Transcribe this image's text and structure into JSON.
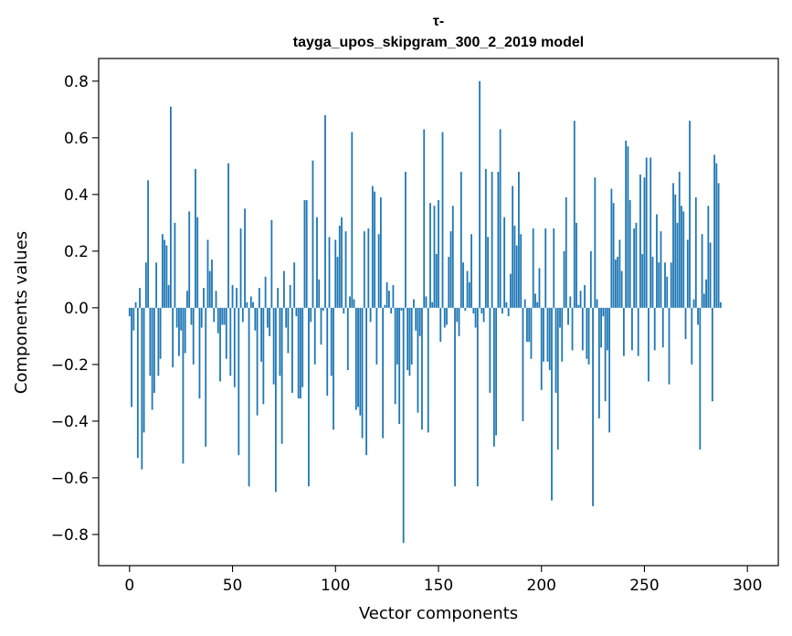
{
  "chart_data": {
    "type": "bar",
    "title_line1": "τ-",
    "title_line2": "tayga_upos_skipgram_300_2_2019 model",
    "xlabel": "Vector components",
    "ylabel": "Components values",
    "xlim": [
      -15,
      315
    ],
    "ylim": [
      -0.91,
      0.88
    ],
    "xticks": [
      0,
      50,
      100,
      150,
      200,
      250,
      300
    ],
    "yticks": [
      -0.8,
      -0.6,
      -0.4,
      -0.2,
      0.0,
      0.2,
      0.4,
      0.6,
      0.8
    ],
    "ytick_labels": [
      "−0.8",
      "−0.6",
      "−0.4",
      "−0.2",
      "0.0",
      "0.2",
      "0.4",
      "0.6",
      "0.8"
    ],
    "color": "#1f77b4",
    "values": [
      -0.03,
      -0.35,
      -0.08,
      0.02,
      -0.53,
      0.07,
      -0.57,
      -0.44,
      0.16,
      0.45,
      -0.24,
      -0.36,
      -0.3,
      0.16,
      -0.24,
      -0.18,
      0.26,
      0.24,
      0.22,
      0.08,
      0.71,
      -0.21,
      0.3,
      -0.07,
      -0.17,
      -0.08,
      -0.55,
      -0.16,
      0.06,
      0.34,
      -0.06,
      -0.2,
      0.49,
      0.32,
      -0.32,
      -0.07,
      0.07,
      -0.49,
      0.24,
      0.13,
      0.17,
      -0.05,
      0.06,
      -0.09,
      -0.26,
      -0.06,
      -0.06,
      -0.18,
      0.51,
      -0.24,
      0.08,
      -0.28,
      0.07,
      -0.52,
      0.28,
      -0.05,
      0.35,
      0.02,
      -0.63,
      0.04,
      0.02,
      -0.08,
      -0.38,
      0.07,
      -0.19,
      -0.34,
      0.11,
      -0.07,
      -0.1,
      0.31,
      -0.27,
      -0.65,
      0.07,
      -0.24,
      -0.48,
      0.13,
      -0.07,
      -0.16,
      0.08,
      -0.3,
      0.16,
      -0.03,
      -0.32,
      -0.32,
      -0.28,
      0.38,
      0.38,
      -0.63,
      -0.05,
      0.52,
      -0.2,
      0.32,
      0.1,
      -0.13,
      -0.01,
      0.68,
      -0.31,
      0.25,
      -0.24,
      -0.43,
      0.24,
      0.18,
      0.29,
      0.32,
      -0.02,
      0.27,
      -0.22,
      0.04,
      0.62,
      0.03,
      -0.36,
      -0.35,
      -0.38,
      -0.46,
      0.27,
      -0.52,
      0.28,
      -0.05,
      0.43,
      0.41,
      -0.2,
      0.26,
      0.39,
      -0.46,
      0.01,
      0.09,
      0.06,
      -0.02,
      0.08,
      -0.34,
      -0.2,
      -0.41,
      -0.01,
      -0.83,
      0.48,
      -0.22,
      -0.24,
      -0.2,
      0.03,
      -0.08,
      -0.37,
      -0.1,
      -0.43,
      0.63,
      0.04,
      -0.44,
      0.37,
      0.02,
      0.36,
      0.19,
      0.38,
      -0.12,
      0.62,
      -0.07,
      -0.06,
      0.18,
      0.27,
      0.36,
      -0.63,
      -0.05,
      -0.1,
      0.48,
      0.16,
      -0.01,
      0.13,
      0.09,
      0.26,
      -0.02,
      -0.07,
      -0.63,
      0.8,
      -0.02,
      -0.05,
      0.49,
      0.25,
      -0.3,
      0.48,
      -0.49,
      -0.45,
      0.48,
      0.63,
      -0.02,
      0.32,
      0.02,
      -0.03,
      0.12,
      0.43,
      0.29,
      0.22,
      0.48,
      0.26,
      -0.4,
      0.03,
      -0.12,
      -0.12,
      -0.18,
      0.28,
      0.05,
      0.02,
      0.14,
      -0.29,
      -0.19,
      0.28,
      -0.19,
      -0.22,
      -0.68,
      0.28,
      -0.3,
      -0.5,
      -0.07,
      -0.19,
      0.2,
      0.39,
      -0.06,
      0.04,
      -0.15,
      0.66,
      0.3,
      0.01,
      0.06,
      -0.15,
      0.08,
      -0.18,
      -0.2,
      0.2,
      -0.7,
      0.46,
      0.03,
      -0.39,
      -0.14,
      -0.03,
      -0.33,
      -0.15,
      -0.44,
      0.42,
      0.37,
      0.17,
      0.18,
      0.24,
      0.13,
      -0.17,
      0.59,
      0.57,
      0.38,
      -0.15,
      0.28,
      0.3,
      -0.17,
      0.47,
      0.19,
      0.46,
      0.53,
      -0.26,
      0.53,
      0.18,
      -0.15,
      0.33,
      0.16,
      0.27,
      -0.14,
      0.16,
      0.11,
      -0.27,
      0.16,
      0.44,
      0.4,
      0.3,
      0.48,
      0.36,
      0.34,
      -0.11,
      0.24,
      0.66,
      -0.2,
      0.03,
      0.39,
      -0.06,
      -0.5,
      0.26,
      0.05,
      0.1,
      0.36,
      0.23,
      -0.33,
      0.54,
      0.51,
      0.44,
      0.02
    ]
  }
}
